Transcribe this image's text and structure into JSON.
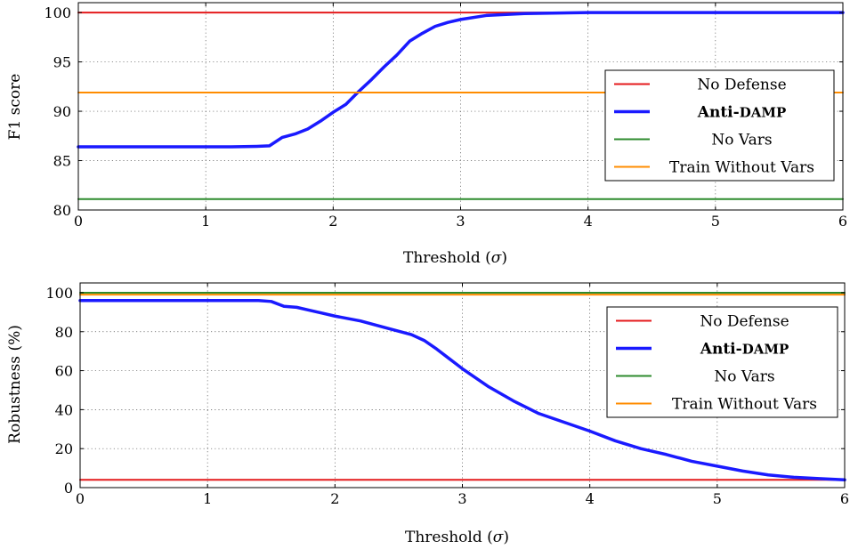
{
  "chart_data": [
    {
      "type": "line",
      "xlabel": "Threshold (σ)",
      "ylabel": "F1 score",
      "xlim": [
        0,
        6
      ],
      "ylim": [
        80,
        101
      ],
      "xticks": [
        0,
        1,
        2,
        3,
        4,
        5,
        6
      ],
      "yticks": [
        80,
        85,
        90,
        95,
        100
      ],
      "grid": true,
      "legend_position": "right",
      "series": [
        {
          "name": "No Defense",
          "color": "#e41a1c",
          "width": 2,
          "bold": false,
          "x": [
            0,
            6
          ],
          "y": [
            100,
            100
          ]
        },
        {
          "name": "Anti-DAMP",
          "color": "#1a1aff",
          "width": 3.5,
          "bold": true,
          "x": [
            0,
            0.5,
            1.0,
            1.2,
            1.4,
            1.5,
            1.6,
            1.7,
            1.8,
            1.9,
            2.0,
            2.1,
            2.2,
            2.3,
            2.4,
            2.5,
            2.6,
            2.7,
            2.8,
            2.9,
            3.0,
            3.2,
            3.5,
            4.0,
            6.0
          ],
          "y": [
            86.4,
            86.4,
            86.4,
            86.4,
            86.45,
            86.5,
            87.35,
            87.7,
            88.2,
            89.0,
            89.9,
            90.7,
            92.0,
            93.2,
            94.5,
            95.7,
            97.1,
            97.9,
            98.6,
            99.0,
            99.3,
            99.7,
            99.9,
            100,
            100
          ]
        },
        {
          "name": "No Vars",
          "color": "#2e8b2e",
          "width": 2,
          "bold": false,
          "x": [
            0,
            6
          ],
          "y": [
            81.1,
            81.1
          ]
        },
        {
          "name": "Train Without Vars",
          "color": "#ff8c00",
          "width": 2,
          "bold": false,
          "x": [
            0,
            6
          ],
          "y": [
            91.9,
            91.9
          ]
        }
      ]
    },
    {
      "type": "line",
      "xlabel": "Threshold (σ)",
      "ylabel": "Robustness (%)",
      "xlim": [
        0,
        6
      ],
      "ylim": [
        0,
        105
      ],
      "xticks": [
        0,
        1,
        2,
        3,
        4,
        5,
        6
      ],
      "yticks": [
        0,
        20,
        40,
        60,
        80,
        100
      ],
      "grid": true,
      "legend_position": "right",
      "series": [
        {
          "name": "No Defense",
          "color": "#e41a1c",
          "width": 2,
          "bold": false,
          "x": [
            0,
            6
          ],
          "y": [
            4,
            4
          ]
        },
        {
          "name": "Anti-DAMP",
          "color": "#1a1aff",
          "width": 3.5,
          "bold": true,
          "x": [
            0,
            0.5,
            1.0,
            1.4,
            1.5,
            1.6,
            1.7,
            1.8,
            1.9,
            2.0,
            2.2,
            2.4,
            2.6,
            2.7,
            2.8,
            2.9,
            3.0,
            3.2,
            3.4,
            3.6,
            3.8,
            4.0,
            4.2,
            4.4,
            4.6,
            4.8,
            5.0,
            5.2,
            5.4,
            5.6,
            5.8,
            6.0
          ],
          "y": [
            96,
            96,
            96,
            96,
            95.5,
            93,
            92.5,
            91,
            89.5,
            88,
            85.5,
            82,
            78.5,
            75.5,
            71,
            66,
            61,
            52,
            44.5,
            38,
            33.5,
            29,
            24,
            20,
            17,
            13.5,
            11,
            8.5,
            6.5,
            5.3,
            4.6,
            4
          ]
        },
        {
          "name": "No Vars",
          "color": "#2e8b2e",
          "width": 2,
          "bold": false,
          "x": [
            0,
            6
          ],
          "y": [
            100,
            100
          ]
        },
        {
          "name": "Train Without Vars",
          "color": "#ff8c00",
          "width": 2,
          "bold": false,
          "x": [
            0,
            6
          ],
          "y": [
            99,
            99
          ]
        }
      ]
    }
  ]
}
